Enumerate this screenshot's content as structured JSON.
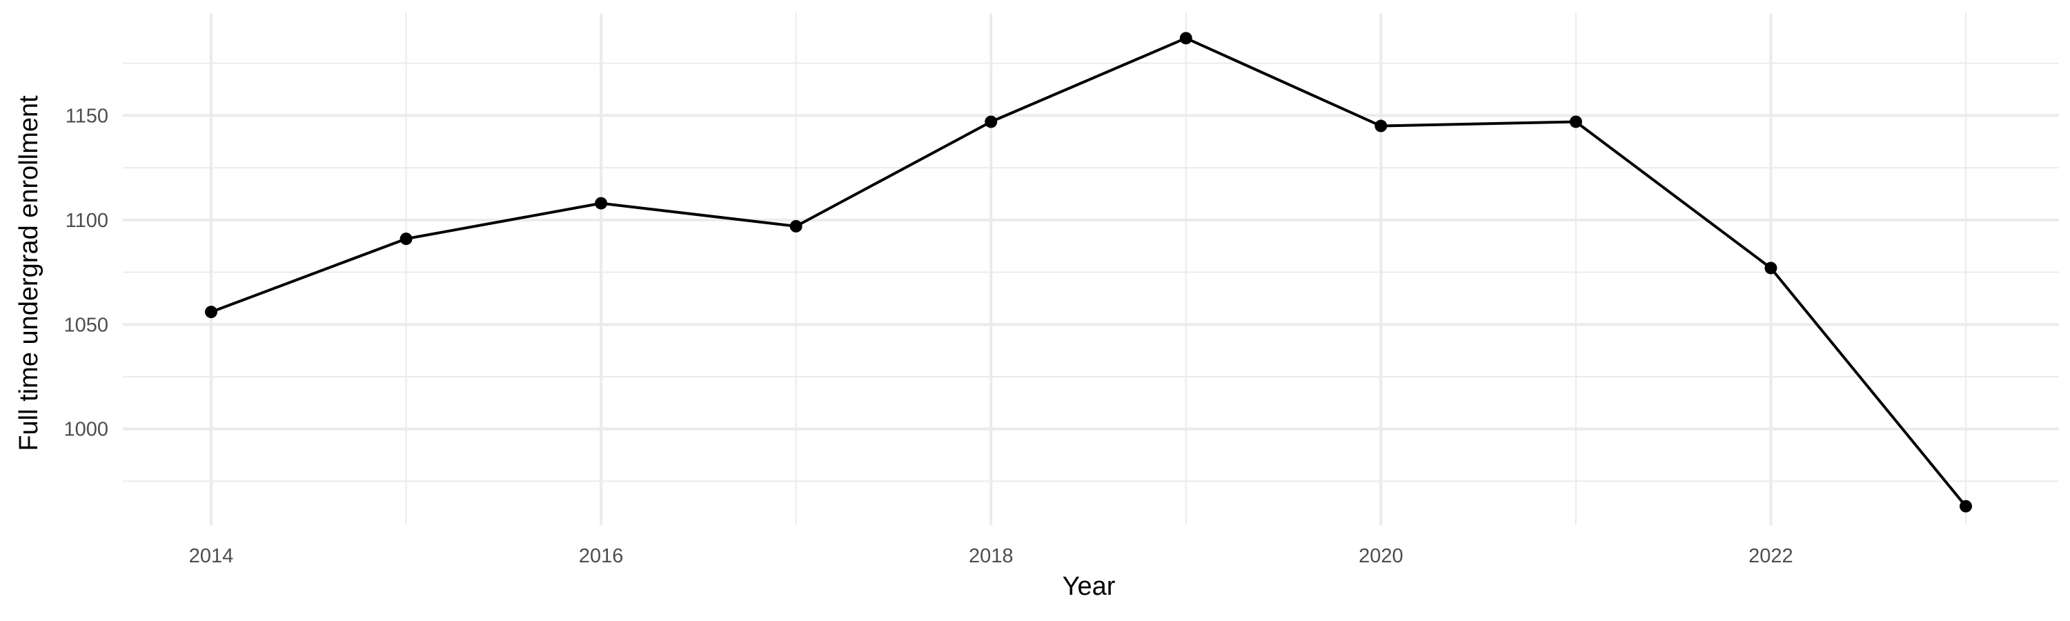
{
  "chart_data": {
    "type": "line",
    "title": "",
    "xlabel": "Year",
    "ylabel": "Full time undergrad enrollment",
    "x": [
      2014,
      2015,
      2016,
      2017,
      2018,
      2019,
      2020,
      2021,
      2022,
      2023
    ],
    "series": [
      {
        "values": [
          1056,
          1091,
          1108,
          1097,
          1147,
          1187,
          1145,
          1147,
          1077,
          963
        ]
      }
    ],
    "xlim": [
      2013.55,
      2023.45
    ],
    "ylim": [
      954,
      1199
    ],
    "x_ticks": [
      2014,
      2016,
      2018,
      2020,
      2022
    ],
    "x_tick_labels": [
      "2014",
      "2016",
      "2018",
      "2020",
      "2022"
    ],
    "x_minor_ticks": [
      2015,
      2017,
      2019,
      2021,
      2023
    ],
    "y_ticks": [
      1000,
      1050,
      1100,
      1150
    ],
    "y_tick_labels": [
      "1000",
      "1050",
      "1100",
      "1150"
    ],
    "y_minor_ticks": [
      975,
      1025,
      1075,
      1125,
      1175
    ],
    "grid": true,
    "legend": "none",
    "colors": {
      "line": "#000000",
      "point": "#000000",
      "grid": "#ebebeb",
      "tick_text": "#4d4d4d",
      "background": "#ffffff"
    }
  }
}
